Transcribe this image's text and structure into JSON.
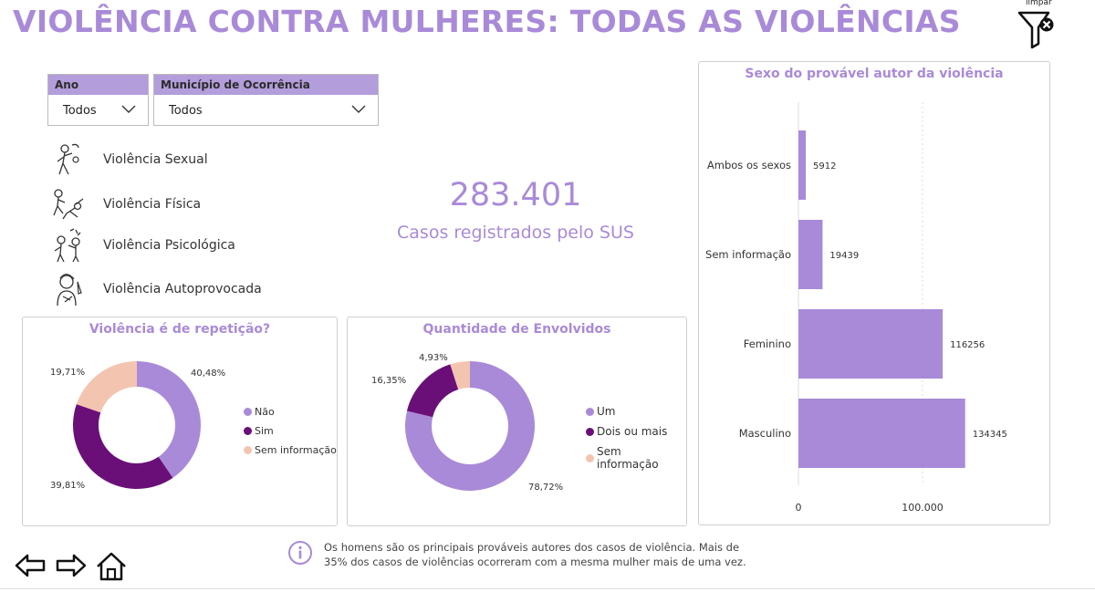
{
  "title": "VIOLÊNCIA CONTRA MULHERES: TODAS AS VIOLÊNCIAS",
  "clear_button": {
    "label": "limpar",
    "icon": "filter-clear-icon"
  },
  "filters": {
    "year": {
      "label": "Ano",
      "value": "Todos"
    },
    "municipality": {
      "label": "Município de Ocorrência",
      "value": "Todos"
    }
  },
  "violence_types": [
    {
      "label": "Violência Sexual",
      "icon": "sexual-violence-icon"
    },
    {
      "label": "Violência Física",
      "icon": "physical-violence-icon"
    },
    {
      "label": "Violência Psicológica",
      "icon": "psychological-violence-icon"
    },
    {
      "label": "Violência Autoprovocada",
      "icon": "self-inflicted-violence-icon"
    }
  ],
  "kpi": {
    "value": "283.401",
    "label": "Casos registrados pelo SUS"
  },
  "repetition_chart": {
    "title": "Violência é de repetição?",
    "labels": {
      "nao": "40,48%",
      "sim": "39,81%",
      "sem": "19,71%"
    },
    "legend": [
      "Não",
      "Sim",
      "Sem informação"
    ]
  },
  "involved_chart": {
    "title": "Quantidade de Envolvidos",
    "labels": {
      "um": "78,72%",
      "dois": "16,35%",
      "sem": "4,93%"
    },
    "legend": [
      "Um",
      "Dois ou mais",
      "Sem informação"
    ]
  },
  "author_chart": {
    "title": "Sexo do provável autor da violência",
    "axis_ticks": [
      "0",
      "100.000"
    ]
  },
  "chart_data": [
    {
      "type": "pie",
      "title": "Violência é de repetição?",
      "categories": [
        "Não",
        "Sim",
        "Sem informação"
      ],
      "values": [
        40.48,
        39.81,
        19.71
      ],
      "colors": [
        "#a98ad8",
        "#6a0f78",
        "#f3c5b0"
      ],
      "legend": "right"
    },
    {
      "type": "pie",
      "title": "Quantidade de Envolvidos",
      "categories": [
        "Um",
        "Dois ou mais",
        "Sem informação"
      ],
      "values": [
        78.72,
        16.35,
        4.93
      ],
      "colors": [
        "#a98ad8",
        "#6a0f78",
        "#f3c5b0"
      ],
      "legend": "right"
    },
    {
      "type": "bar",
      "orientation": "horizontal",
      "title": "Sexo do provável autor da violência",
      "categories": [
        "Ambos os sexos",
        "Sem informação",
        "Feminino",
        "Masculino"
      ],
      "values": [
        5912,
        19439,
        116256,
        134345
      ],
      "value_labels": [
        "5912",
        "19439",
        "116256",
        "134345"
      ],
      "xlim": [
        0,
        175000
      ],
      "x_ticks": [
        0,
        100000
      ],
      "grid": true,
      "color": "#a98ad8"
    }
  ],
  "note": {
    "icon": "info-icon",
    "text": "Os homens são os principais prováveis autores dos casos de violência. Mais de 35% dos casos de violências ocorreram com a mesma mulher mais de uma vez."
  },
  "navigation": {
    "back_icon": "arrow-left-icon",
    "forward_icon": "arrow-right-icon",
    "home_icon": "home-icon"
  }
}
